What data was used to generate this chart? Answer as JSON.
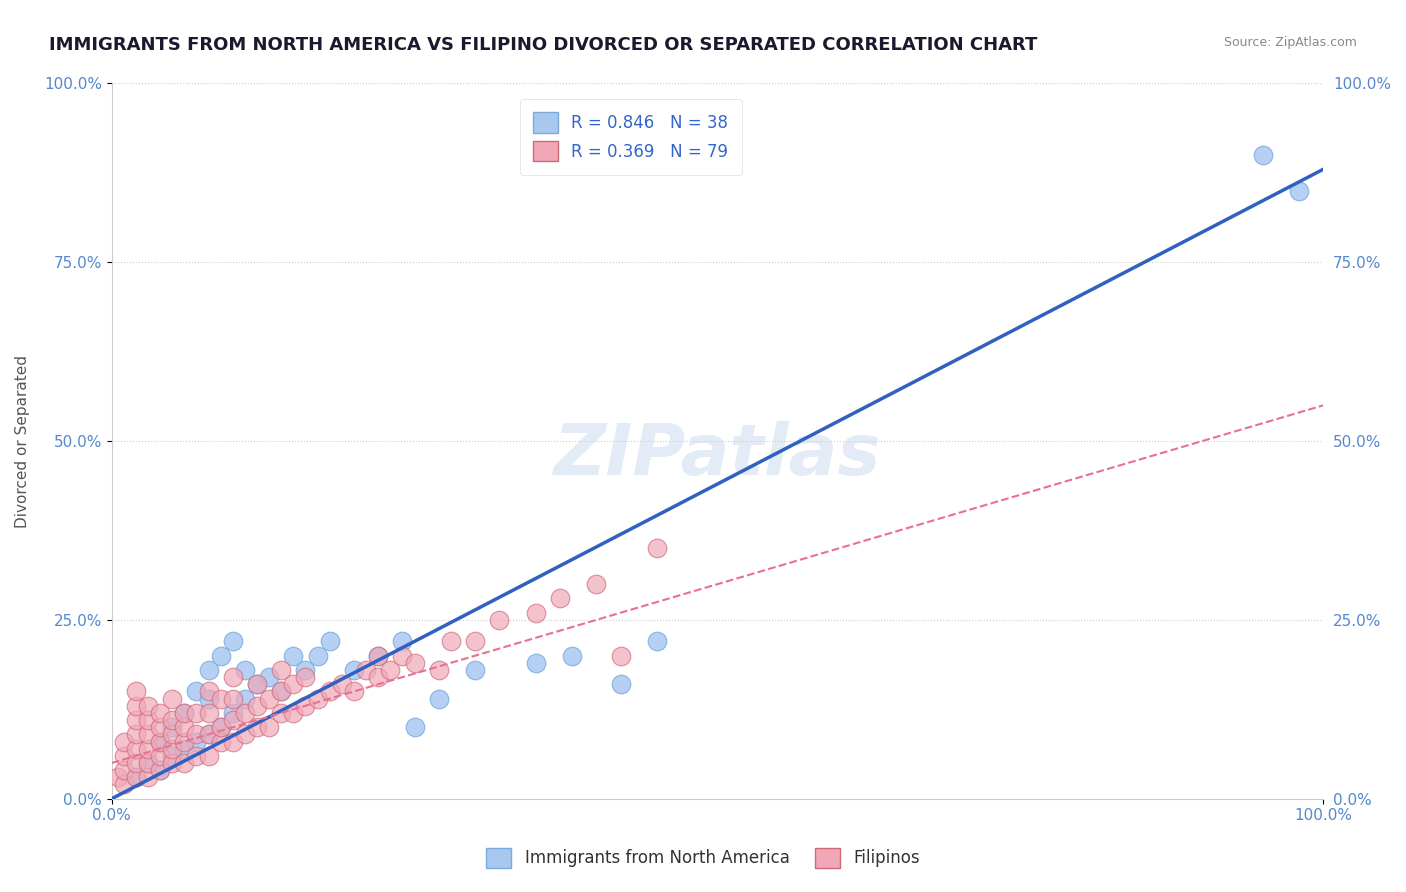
{
  "title": "IMMIGRANTS FROM NORTH AMERICA VS FILIPINO DIVORCED OR SEPARATED CORRELATION CHART",
  "source": "Source: ZipAtlas.com",
  "xlabel": "",
  "ylabel": "Divorced or Separated",
  "xlim": [
    0,
    100
  ],
  "ylim": [
    0,
    100
  ],
  "xtick_labels": [
    "0.0%",
    "100.0%"
  ],
  "ytick_labels": [
    "0.0%",
    "25.0%",
    "50.0%",
    "75.0%",
    "100.0%"
  ],
  "ytick_positions": [
    0,
    25,
    50,
    75,
    100
  ],
  "blue_R": "0.846",
  "blue_N": "38",
  "pink_R": "0.369",
  "pink_N": "79",
  "blue_color": "#a8c8f0",
  "pink_color": "#f0a8b8",
  "blue_line_color": "#3060c0",
  "pink_line_color": "#e87090",
  "title_color": "#1a1a2e",
  "axis_label_color": "#5588cc",
  "tick_label_color": "#5588cc",
  "legend_text_color": "#3366cc",
  "watermark": "ZIPatlas",
  "background_color": "#ffffff",
  "blue_scatter_x": [
    2,
    3,
    4,
    4,
    5,
    5,
    6,
    6,
    7,
    7,
    8,
    8,
    8,
    9,
    9,
    10,
    10,
    11,
    11,
    12,
    13,
    14,
    15,
    16,
    17,
    18,
    20,
    22,
    24,
    25,
    27,
    30,
    35,
    38,
    42,
    45,
    95,
    98
  ],
  "blue_scatter_y": [
    3,
    5,
    4,
    8,
    6,
    10,
    7,
    12,
    8,
    15,
    9,
    14,
    18,
    10,
    20,
    12,
    22,
    14,
    18,
    16,
    17,
    15,
    20,
    18,
    20,
    22,
    18,
    20,
    22,
    10,
    14,
    18,
    19,
    20,
    16,
    22,
    90,
    85
  ],
  "pink_scatter_x": [
    0.5,
    1,
    1,
    1,
    1,
    2,
    2,
    2,
    2,
    2,
    2,
    2,
    3,
    3,
    3,
    3,
    3,
    3,
    4,
    4,
    4,
    4,
    4,
    5,
    5,
    5,
    5,
    5,
    6,
    6,
    6,
    6,
    7,
    7,
    7,
    8,
    8,
    8,
    8,
    9,
    9,
    9,
    10,
    10,
    10,
    10,
    11,
    11,
    12,
    12,
    12,
    13,
    13,
    14,
    14,
    14,
    15,
    15,
    16,
    16,
    17,
    18,
    19,
    20,
    21,
    22,
    22,
    23,
    24,
    25,
    27,
    28,
    30,
    32,
    35,
    37,
    40,
    42,
    45
  ],
  "pink_scatter_y": [
    3,
    2,
    4,
    6,
    8,
    3,
    5,
    7,
    9,
    11,
    13,
    15,
    3,
    5,
    7,
    9,
    11,
    13,
    4,
    6,
    8,
    10,
    12,
    5,
    7,
    9,
    11,
    14,
    5,
    8,
    10,
    12,
    6,
    9,
    12,
    6,
    9,
    12,
    15,
    8,
    10,
    14,
    8,
    11,
    14,
    17,
    9,
    12,
    10,
    13,
    16,
    10,
    14,
    12,
    15,
    18,
    12,
    16,
    13,
    17,
    14,
    15,
    16,
    15,
    18,
    17,
    20,
    18,
    20,
    19,
    18,
    22,
    22,
    25,
    26,
    28,
    30,
    20,
    35
  ],
  "blue_line_x0": 0,
  "blue_line_x1": 100,
  "blue_line_y0": 0,
  "blue_line_y1": 88,
  "pink_line_x0": 0,
  "pink_line_x1": 100,
  "pink_line_y0": 5,
  "pink_line_y1": 55
}
